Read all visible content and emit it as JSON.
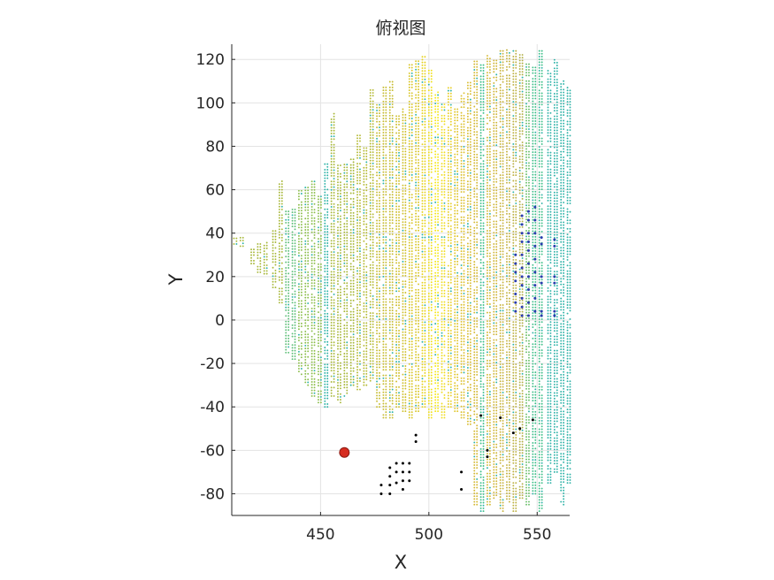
{
  "chart_data": {
    "type": "scatter",
    "title": "俯视图",
    "xlabel": "X",
    "ylabel": "Y",
    "xlim": [
      409,
      565
    ],
    "ylim": [
      -90,
      127
    ],
    "x_ticks": [
      450,
      500,
      550
    ],
    "x_tick_labels": [
      "450",
      "500",
      "550"
    ],
    "y_ticks": [
      -80,
      -60,
      -40,
      -20,
      0,
      20,
      40,
      60,
      80,
      100,
      120
    ],
    "y_tick_labels": [
      "-80",
      "-60",
      "-40",
      "-20",
      "0",
      "20",
      "40",
      "60",
      "80",
      "100",
      "120"
    ],
    "grid": true,
    "colormap": "parula",
    "color_scale_note": "point color encodes height (dark blue low → yellow high)",
    "point_columns": [
      {
        "x": 410,
        "y_min": 35,
        "y_max": 38,
        "color": "#a8b83a"
      },
      {
        "x": 413,
        "y_min": 34,
        "y_max": 38,
        "color": "#a8b83a"
      },
      {
        "x": 418,
        "y_min": 26,
        "y_max": 33,
        "color": "#a8b83a"
      },
      {
        "x": 421,
        "y_min": 22,
        "y_max": 35,
        "color": "#a8b83a"
      },
      {
        "x": 424,
        "y_min": 20,
        "y_max": 37,
        "color": "#a8b83a"
      },
      {
        "x": 428,
        "y_min": 15,
        "y_max": 42,
        "color": "#a8b83a"
      },
      {
        "x": 431,
        "y_min": 8,
        "y_max": 65,
        "color": "#a8b83a"
      },
      {
        "x": 434,
        "y_min": -15,
        "y_max": 50,
        "color": "#5fbf7a"
      },
      {
        "x": 437,
        "y_min": -18,
        "y_max": 52,
        "color": "#5fbf7a"
      },
      {
        "x": 440,
        "y_min": -25,
        "y_max": 60,
        "color": "#8cbe4c"
      },
      {
        "x": 443,
        "y_min": -30,
        "y_max": 62,
        "color": "#8cbe4c"
      },
      {
        "x": 446,
        "y_min": -35,
        "y_max": 65,
        "color": "#8cbe4c"
      },
      {
        "x": 449,
        "y_min": -38,
        "y_max": 58,
        "color": "#8cbe4c"
      },
      {
        "x": 452,
        "y_min": -40,
        "y_max": 72,
        "color": "#2fb3a8"
      },
      {
        "x": 455,
        "y_min": -35,
        "y_max": 96,
        "color": "#a8b83a"
      },
      {
        "x": 458,
        "y_min": -38,
        "y_max": 72,
        "color": "#a8b83a"
      },
      {
        "x": 461,
        "y_min": -35,
        "y_max": 72,
        "color": "#a8b83a"
      },
      {
        "x": 464,
        "y_min": -30,
        "y_max": 74,
        "color": "#a8b83a"
      },
      {
        "x": 467,
        "y_min": -32,
        "y_max": 85,
        "color": "#b5ba35"
      },
      {
        "x": 470,
        "y_min": -30,
        "y_max": 80,
        "color": "#b5ba35"
      },
      {
        "x": 473,
        "y_min": -28,
        "y_max": 106,
        "color": "#b5ba35"
      },
      {
        "x": 476,
        "y_min": -40,
        "y_max": 100,
        "color": "#c7bc32"
      },
      {
        "x": 479,
        "y_min": -45,
        "y_max": 108,
        "color": "#c7bc32"
      },
      {
        "x": 482,
        "y_min": -45,
        "y_max": 110,
        "color": "#c7bc32"
      },
      {
        "x": 485,
        "y_min": -40,
        "y_max": 95,
        "color": "#cfbf2c"
      },
      {
        "x": 488,
        "y_min": -42,
        "y_max": 98,
        "color": "#cfbf2c"
      },
      {
        "x": 491,
        "y_min": -45,
        "y_max": 118,
        "color": "#d9c626"
      },
      {
        "x": 494,
        "y_min": -42,
        "y_max": 120,
        "color": "#d9c626"
      },
      {
        "x": 497,
        "y_min": -40,
        "y_max": 122,
        "color": "#e6d21f"
      },
      {
        "x": 500,
        "y_min": -45,
        "y_max": 115,
        "color": "#f0e01a"
      },
      {
        "x": 503,
        "y_min": -42,
        "y_max": 105,
        "color": "#f5e81a"
      },
      {
        "x": 506,
        "y_min": -45,
        "y_max": 100,
        "color": "#f0dd22"
      },
      {
        "x": 509,
        "y_min": -40,
        "y_max": 108,
        "color": "#e8cf28"
      },
      {
        "x": 512,
        "y_min": -42,
        "y_max": 98,
        "color": "#e0c62c"
      },
      {
        "x": 515,
        "y_min": -45,
        "y_max": 105,
        "color": "#dcc02e"
      },
      {
        "x": 518,
        "y_min": -48,
        "y_max": 110,
        "color": "#d8bc30"
      },
      {
        "x": 521,
        "y_min": -85,
        "y_max": 120,
        "color": "#d4b935"
      },
      {
        "x": 524,
        "y_min": -88,
        "y_max": 118,
        "color": "#3fbf8a"
      },
      {
        "x": 527,
        "y_min": -85,
        "y_max": 122,
        "color": "#d4b935"
      },
      {
        "x": 530,
        "y_min": -82,
        "y_max": 120,
        "color": "#d0b63a"
      },
      {
        "x": 533,
        "y_min": -88,
        "y_max": 124,
        "color": "#c9b43e"
      },
      {
        "x": 536,
        "y_min": -85,
        "y_max": 125,
        "color": "#c4b240"
      },
      {
        "x": 539,
        "y_min": -88,
        "y_max": 125,
        "color": "#bdb144"
      },
      {
        "x": 542,
        "y_min": -82,
        "y_max": 123,
        "color": "#b3b048"
      },
      {
        "x": 545,
        "y_min": -85,
        "y_max": 120,
        "color": "#6cc06c"
      },
      {
        "x": 548,
        "y_min": -80,
        "y_max": 118,
        "color": "#3fbf8a"
      },
      {
        "x": 551,
        "y_min": -88,
        "y_max": 125,
        "color": "#3fbf8a"
      },
      {
        "x": 555,
        "y_min": -75,
        "y_max": 115,
        "color": "#2fb3a8"
      },
      {
        "x": 558,
        "y_min": -70,
        "y_max": 120,
        "color": "#2fb3a8"
      },
      {
        "x": 561,
        "y_min": -85,
        "y_max": 110,
        "color": "#2fb3a8"
      },
      {
        "x": 564,
        "y_min": -75,
        "y_max": 108,
        "color": "#2fb3a8"
      }
    ],
    "blue_points": [
      [
        540,
        30
      ],
      [
        540,
        26
      ],
      [
        540,
        22
      ],
      [
        540,
        18
      ],
      [
        540,
        12
      ],
      [
        540,
        8
      ],
      [
        540,
        4
      ],
      [
        543,
        48
      ],
      [
        543,
        44
      ],
      [
        543,
        40
      ],
      [
        543,
        36
      ],
      [
        543,
        30
      ],
      [
        543,
        24
      ],
      [
        543,
        20
      ],
      [
        543,
        16
      ],
      [
        543,
        10
      ],
      [
        543,
        6
      ],
      [
        543,
        2
      ],
      [
        546,
        50
      ],
      [
        546,
        46
      ],
      [
        546,
        40
      ],
      [
        546,
        36
      ],
      [
        546,
        32
      ],
      [
        546,
        26
      ],
      [
        546,
        20
      ],
      [
        546,
        14
      ],
      [
        546,
        8
      ],
      [
        546,
        2
      ],
      [
        549,
        52
      ],
      [
        549,
        46
      ],
      [
        549,
        40
      ],
      [
        549,
        34
      ],
      [
        549,
        28
      ],
      [
        549,
        22
      ],
      [
        549,
        16
      ],
      [
        549,
        10
      ],
      [
        549,
        4
      ],
      [
        552,
        38
      ],
      [
        552,
        35
      ],
      [
        552,
        20
      ],
      [
        552,
        17
      ],
      [
        552,
        4
      ],
      [
        552,
        2
      ],
      [
        558,
        37
      ],
      [
        558,
        34
      ],
      [
        558,
        20
      ],
      [
        558,
        17
      ],
      [
        558,
        4
      ],
      [
        558,
        2
      ]
    ],
    "black_points": [
      [
        478,
        -76
      ],
      [
        478,
        -80
      ],
      [
        482,
        -68
      ],
      [
        482,
        -72
      ],
      [
        482,
        -76
      ],
      [
        482,
        -80
      ],
      [
        485,
        -66
      ],
      [
        485,
        -70
      ],
      [
        485,
        -75
      ],
      [
        488,
        -66
      ],
      [
        488,
        -70
      ],
      [
        488,
        -74
      ],
      [
        488,
        -78
      ],
      [
        491,
        -66
      ],
      [
        491,
        -70
      ],
      [
        491,
        -74
      ],
      [
        494,
        -53
      ],
      [
        494,
        -56
      ],
      [
        515,
        -70
      ],
      [
        515,
        -78
      ],
      [
        524,
        -44
      ],
      [
        527,
        -60
      ],
      [
        527,
        -63
      ],
      [
        533,
        -45
      ],
      [
        539,
        -52
      ],
      [
        542,
        -50
      ],
      [
        548,
        -46
      ]
    ],
    "marker": {
      "x": 461,
      "y": -61,
      "color": "#d62d20"
    }
  }
}
